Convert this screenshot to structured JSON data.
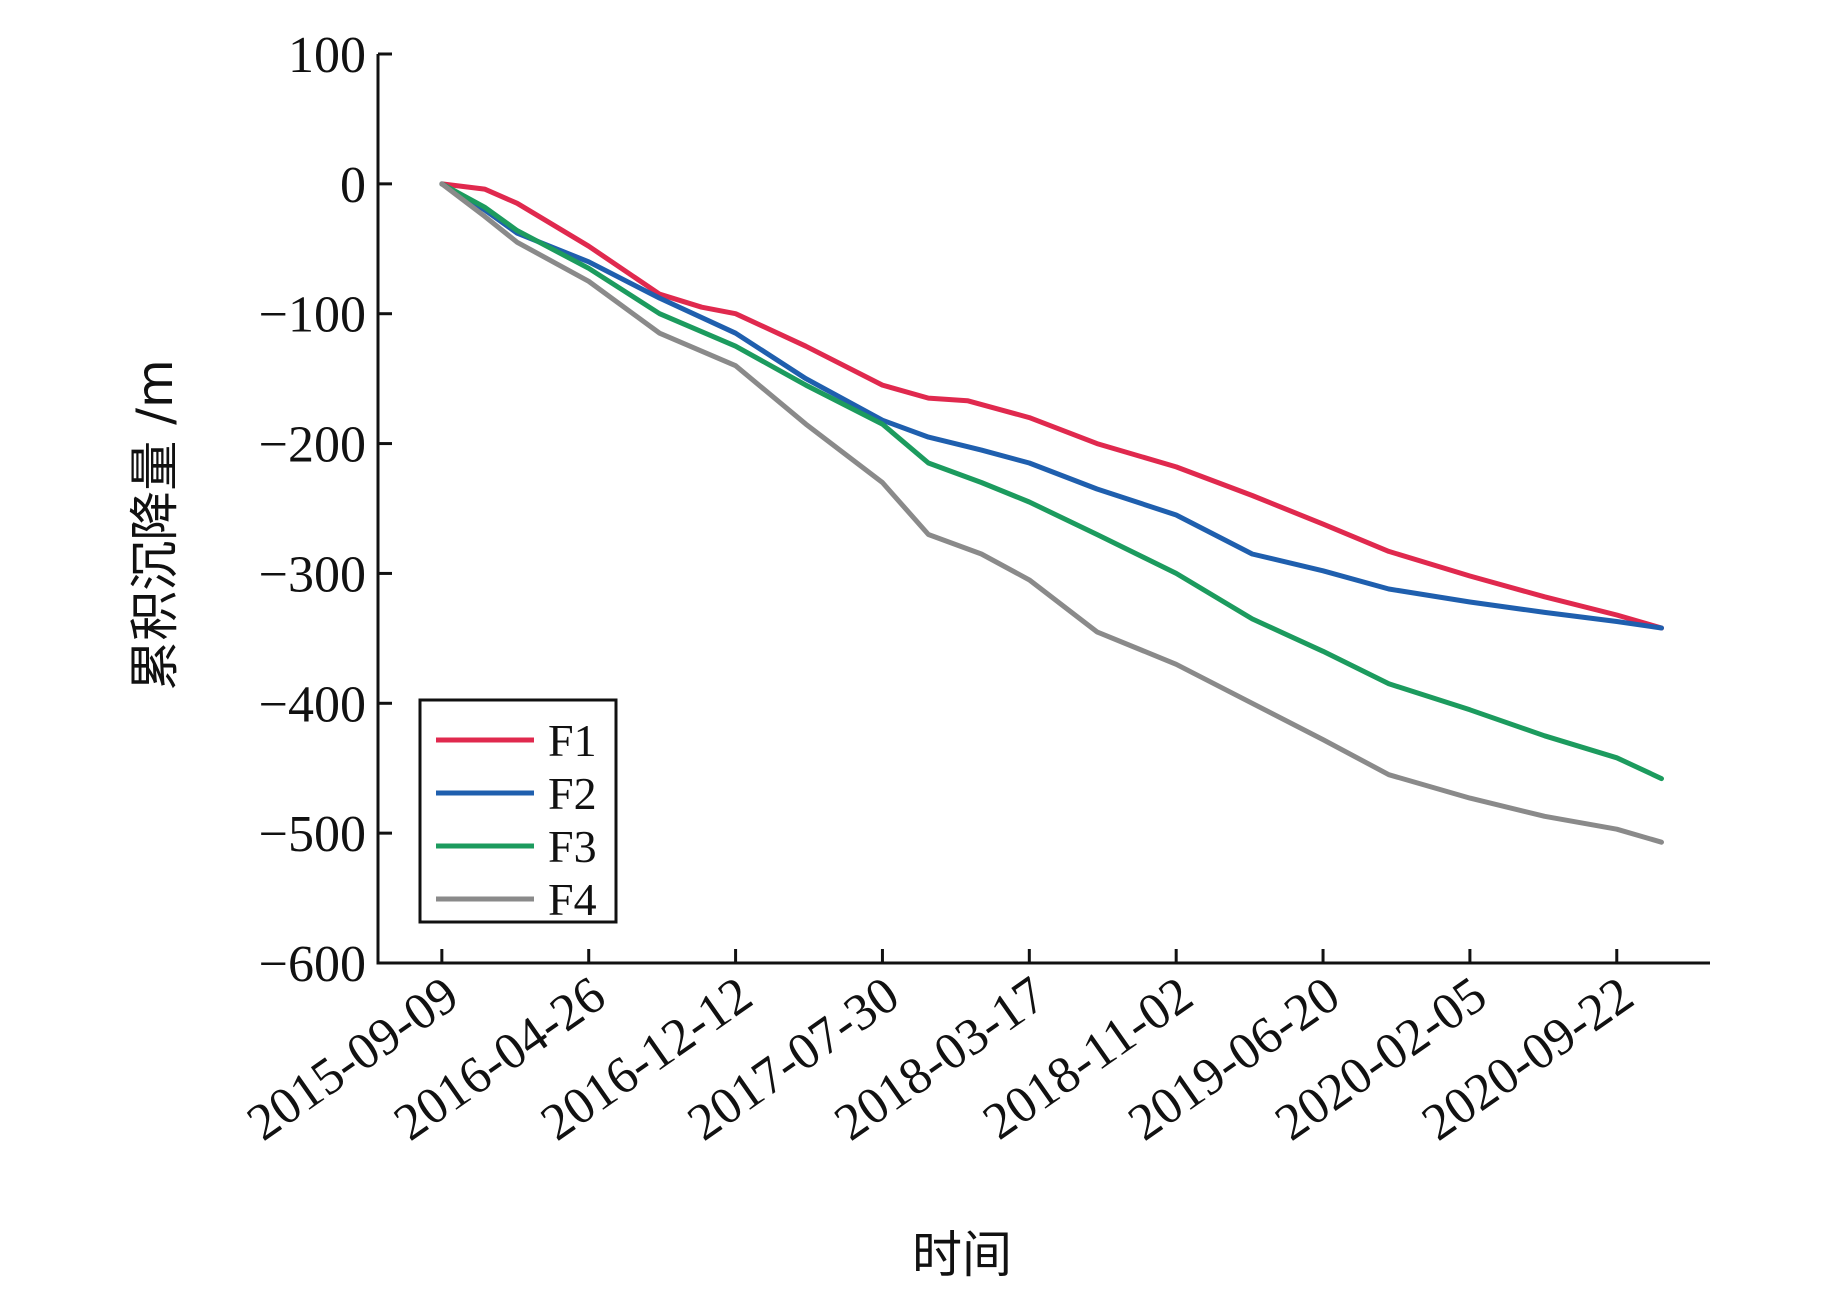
{
  "chart_data": {
    "type": "line",
    "title": "",
    "xlabel": "时间",
    "ylabel": "累积沉降量 /m",
    "ylim": [
      -600,
      100
    ],
    "yticks": [
      100,
      0,
      -100,
      -200,
      -300,
      -400,
      -500,
      -600
    ],
    "ytick_labels": [
      "100",
      "0",
      "−100",
      "−200",
      "−300",
      "−400",
      "−500",
      "−600"
    ],
    "xticks": [
      "2015-09-09",
      "2016-04-26",
      "2016-12-12",
      "2017-07-30",
      "2018-03-17",
      "2018-11-02",
      "2019-06-20",
      "2020-02-05",
      "2020-09-22"
    ],
    "xlim": [
      "2015-06-01",
      "2021-02-15"
    ],
    "grid": false,
    "legend_position": "bottom-left",
    "series": [
      {
        "name": "F1",
        "color": "#e0294e",
        "x": [
          "2015-09-09",
          "2015-11-15",
          "2016-01-05",
          "2016-04-26",
          "2016-08-15",
          "2016-10-20",
          "2016-12-12",
          "2017-04-01",
          "2017-07-30",
          "2017-10-10",
          "2017-12-10",
          "2018-03-17",
          "2018-07-01",
          "2018-11-02",
          "2019-03-01",
          "2019-06-20",
          "2019-10-01",
          "2020-02-05",
          "2020-06-01",
          "2020-09-22",
          "2020-12-01"
        ],
        "y": [
          0,
          -4,
          -15,
          -48,
          -85,
          -95,
          -100,
          -125,
          -155,
          -165,
          -167,
          -180,
          -200,
          -218,
          -240,
          -262,
          -283,
          -302,
          -318,
          -332,
          -342
        ]
      },
      {
        "name": "F2",
        "color": "#1f5fae",
        "x": [
          "2015-09-09",
          "2015-11-15",
          "2016-01-05",
          "2016-04-26",
          "2016-08-15",
          "2016-12-12",
          "2017-04-01",
          "2017-07-30",
          "2017-10-10",
          "2018-01-01",
          "2018-03-17",
          "2018-07-01",
          "2018-11-02",
          "2019-03-01",
          "2019-06-20",
          "2019-10-01",
          "2020-02-05",
          "2020-06-01",
          "2020-09-22",
          "2020-12-01"
        ],
        "y": [
          0,
          -20,
          -38,
          -60,
          -88,
          -115,
          -150,
          -182,
          -195,
          -205,
          -215,
          -235,
          -255,
          -285,
          -298,
          -312,
          -322,
          -330,
          -337,
          -342
        ]
      },
      {
        "name": "F3",
        "color": "#1c9b5e",
        "x": [
          "2015-09-09",
          "2015-11-15",
          "2016-01-05",
          "2016-04-26",
          "2016-08-15",
          "2016-12-12",
          "2017-04-01",
          "2017-07-30",
          "2017-10-10",
          "2018-01-01",
          "2018-03-17",
          "2018-07-01",
          "2018-11-02",
          "2019-03-01",
          "2019-06-20",
          "2019-10-01",
          "2020-02-05",
          "2020-06-01",
          "2020-09-22",
          "2020-12-01"
        ],
        "y": [
          0,
          -18,
          -36,
          -65,
          -100,
          -125,
          -155,
          -185,
          -215,
          -230,
          -245,
          -270,
          -300,
          -335,
          -360,
          -385,
          -405,
          -425,
          -442,
          -458
        ]
      },
      {
        "name": "F4",
        "color": "#8a8a8a",
        "x": [
          "2015-09-09",
          "2015-11-15",
          "2016-01-05",
          "2016-04-26",
          "2016-08-15",
          "2016-12-12",
          "2017-04-01",
          "2017-07-30",
          "2017-10-10",
          "2018-01-01",
          "2018-03-17",
          "2018-07-01",
          "2018-11-02",
          "2019-03-01",
          "2019-06-20",
          "2019-10-01",
          "2020-02-05",
          "2020-06-01",
          "2020-09-22",
          "2020-12-01"
        ],
        "y": [
          0,
          -25,
          -45,
          -75,
          -115,
          -140,
          -185,
          -230,
          -270,
          -285,
          -305,
          -345,
          -370,
          -400,
          -428,
          -455,
          -473,
          -487,
          -497,
          -507
        ]
      }
    ]
  }
}
